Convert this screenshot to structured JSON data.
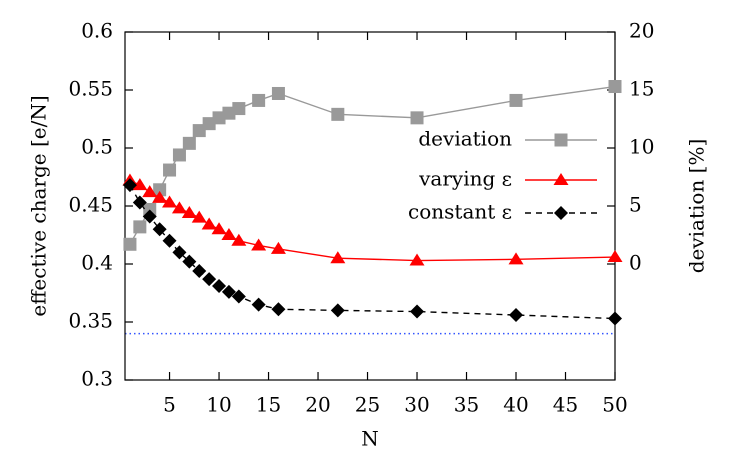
{
  "chart_data": {
    "type": "line",
    "x_label": "N",
    "y_label": "effective charge [e/N]",
    "y2_label": "deviation [%]",
    "x": [
      1,
      2,
      3,
      4,
      5,
      6,
      7,
      8,
      9,
      10,
      11,
      12,
      14,
      16,
      22,
      30,
      40,
      50
    ],
    "series": [
      {
        "name": "deviation",
        "color": "#999999",
        "marker": "square",
        "dash": false,
        "axis": "y2",
        "values": [
          1.7,
          3.2,
          4.7,
          6.4,
          8.1,
          9.4,
          10.4,
          11.5,
          12.1,
          12.6,
          13.0,
          13.4,
          14.1,
          14.7,
          12.9,
          12.6,
          14.1,
          15.3
        ]
      },
      {
        "name": "varying ε",
        "color": "#ff0000",
        "marker": "triangle",
        "dash": false,
        "values": [
          0.472,
          0.468,
          0.462,
          0.457,
          0.453,
          0.448,
          0.444,
          0.44,
          0.434,
          0.43,
          0.425,
          0.42,
          0.416,
          0.413,
          0.405,
          0.403,
          0.404,
          0.406
        ]
      },
      {
        "name": "constant ε",
        "color": "#000000",
        "marker": "diamond",
        "dash": true,
        "values": [
          0.468,
          0.453,
          0.441,
          0.43,
          0.42,
          0.41,
          0.402,
          0.394,
          0.387,
          0.381,
          0.376,
          0.372,
          0.365,
          0.361,
          0.36,
          0.359,
          0.356,
          0.353
        ]
      }
    ],
    "reference_line": {
      "value": 0.34,
      "color": "#3355ff"
    },
    "xlim": [
      0.5,
      50
    ],
    "xticks": [
      5,
      10,
      15,
      20,
      25,
      30,
      35,
      40,
      45,
      50
    ],
    "ylim": [
      0.3,
      0.6
    ],
    "yticks": [
      0.3,
      0.35,
      0.4,
      0.45,
      0.5,
      0.55,
      0.6
    ],
    "y2lim": [
      -10,
      20
    ],
    "y2ticks": [
      0,
      5,
      10,
      15,
      20
    ],
    "legend": "right",
    "grid": false
  }
}
